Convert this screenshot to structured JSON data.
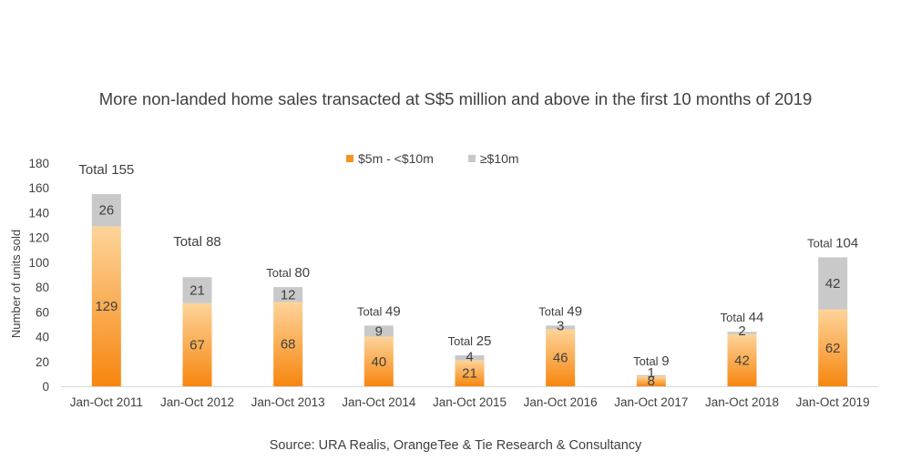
{
  "chart_data": {
    "type": "bar",
    "stacked": true,
    "title": "More non-landed home sales transacted at S$5 million and above in the first 10 months of 2019",
    "source": "Source: URA Realis, OrangeTee & Tie Research & Consultancy",
    "ylabel": "Number of units sold",
    "xlabel": "",
    "ylim": [
      0,
      180
    ],
    "yticks": [
      0,
      20,
      40,
      60,
      80,
      100,
      120,
      140,
      160,
      180
    ],
    "grid": false,
    "legend_position": "top",
    "categories": [
      "Jan-Oct 2011",
      "Jan-Oct 2012",
      "Jan-Oct 2013",
      "Jan-Oct 2014",
      "Jan-Oct 2015",
      "Jan-Oct 2016",
      "Jan-Oct 2017",
      "Jan-Oct 2018",
      "Jan-Oct 2019"
    ],
    "series": [
      {
        "name": "$5m - <$10m",
        "values": [
          129,
          67,
          68,
          40,
          21,
          46,
          8,
          42,
          62
        ],
        "color": "#f7941d"
      },
      {
        "name": "≥$10m",
        "values": [
          26,
          21,
          12,
          9,
          4,
          3,
          1,
          2,
          42
        ],
        "color": "#c9c9c9"
      }
    ],
    "totals_prefix": "Total",
    "totals": [
      155,
      88,
      80,
      49,
      25,
      49,
      9,
      44,
      104
    ]
  }
}
